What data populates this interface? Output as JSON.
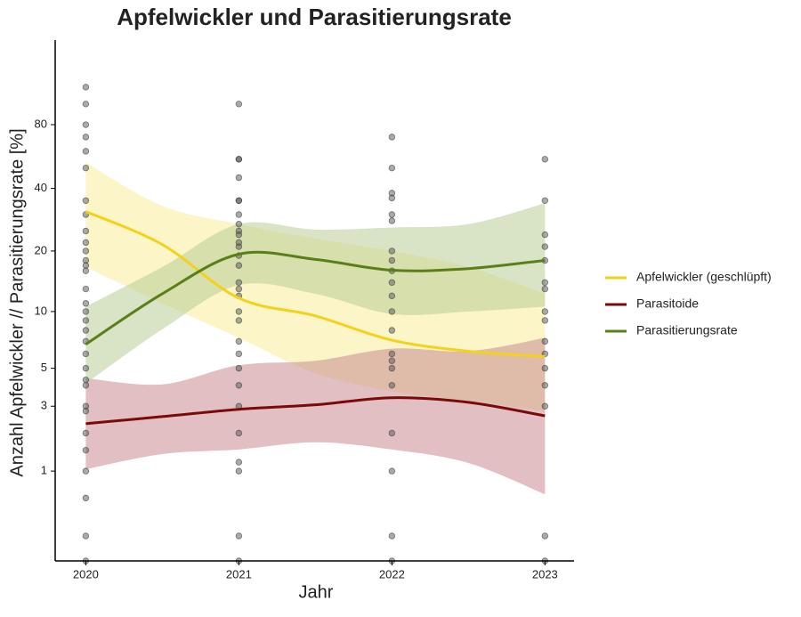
{
  "chart_data": {
    "type": "line",
    "title": "Apfelwickler und Parasitierungsrate",
    "x_label": "Jahr",
    "y_label": "Anzahl Apfelwickler // Parasitierungsrate [%]",
    "y_scale": "log1p",
    "xlim": [
      2019.8,
      2023.19
    ],
    "xticks": [
      2020,
      2021,
      2022,
      2023
    ],
    "ylim": [
      -0.234,
      199
    ],
    "yticks": [
      1,
      3,
      5,
      10,
      20,
      40,
      80
    ],
    "legend": "right",
    "points": {
      "color": "#555555",
      "x": [
        2020,
        2020,
        2020,
        2020,
        2020,
        2020,
        2020,
        2020,
        2020,
        2020,
        2020,
        2020,
        2020,
        2020,
        2020,
        2020,
        2020,
        2020,
        2020,
        2020,
        2020,
        2020,
        2020,
        2020,
        2020,
        2020,
        2020,
        2020,
        2020,
        2020,
        2020,
        2020,
        2021,
        2021,
        2021,
        2021,
        2021,
        2021,
        2021,
        2021,
        2021,
        2021,
        2021,
        2021,
        2021,
        2021,
        2021,
        2021,
        2021,
        2021,
        2021,
        2021,
        2021,
        2021,
        2021,
        2021,
        2021,
        2021,
        2021,
        2021,
        2021,
        2022,
        2022,
        2022,
        2022,
        2022,
        2022,
        2022,
        2022,
        2022,
        2022,
        2022,
        2022,
        2022,
        2022,
        2022,
        2022,
        2022,
        2022,
        2022,
        2022,
        2022,
        2023,
        2023,
        2023,
        2023,
        2023,
        2023,
        2023,
        2023,
        2023,
        2023,
        2023,
        2023,
        2023,
        2023,
        2023,
        2023
      ],
      "y": [
        120,
        100,
        80,
        70,
        60,
        50,
        35,
        30,
        25,
        22,
        20,
        18,
        17,
        16,
        13,
        11,
        10,
        9,
        8,
        7,
        6,
        5,
        4.3,
        4,
        3,
        2.8,
        2,
        1.5,
        1,
        0.5,
        0,
        -0.234,
        100,
        55,
        55,
        45,
        35,
        35,
        30,
        27,
        25,
        24,
        22,
        21,
        19,
        17,
        14,
        13,
        12,
        10,
        9,
        7,
        6,
        5,
        4,
        3,
        2,
        1.2,
        1,
        0,
        -0.234,
        70,
        50,
        38,
        36,
        30,
        28,
        20,
        18,
        16,
        14,
        12,
        10,
        8,
        6,
        5.5,
        5,
        4,
        2,
        1,
        0,
        -0.234,
        55,
        35,
        24,
        21,
        18,
        14,
        13,
        10,
        9,
        7,
        6,
        5,
        4,
        3,
        0,
        -0.234
      ]
    },
    "series": [
      {
        "name": "Apfelwickler (geschlüpft)",
        "color": "#f2d21b",
        "band_color": "#f7ec9a",
        "x": [
          2020,
          2020.5,
          2021,
          2021.5,
          2022,
          2022.5,
          2023
        ],
        "values": [
          31,
          21.5,
          11.7,
          9.5,
          7.1,
          6.2,
          5.8
        ],
        "upper": [
          53,
          33,
          27,
          23,
          20,
          16.7,
          12.3
        ],
        "lower": [
          16.7,
          11,
          7.3,
          4.7,
          3.7,
          3.25,
          2.8
        ]
      },
      {
        "name": "Parasitoide",
        "color": "#7a0a0a",
        "band_color": "#c98a90",
        "x": [
          2020,
          2020.5,
          2021,
          2021.5,
          2022,
          2022.5,
          2023
        ],
        "values": [
          2.32,
          2.58,
          2.87,
          3.06,
          3.38,
          3.17,
          2.61
        ],
        "upper": [
          4.4,
          4.05,
          5.2,
          5.5,
          6.4,
          6.2,
          7.3
        ],
        "lower": [
          1.04,
          1.4,
          1.52,
          1.72,
          1.52,
          1.18,
          0.56
        ]
      },
      {
        "name": "Parasitierungsrate",
        "color": "#5a7f1a",
        "band_color": "#b9cc97",
        "x": [
          2020,
          2020.5,
          2021,
          2021.5,
          2022,
          2022.5,
          2023
        ],
        "values": [
          6.75,
          12.3,
          19.3,
          18.2,
          16.1,
          16.4,
          18
        ],
        "upper": [
          10.6,
          16.7,
          27,
          25.4,
          26,
          27,
          34
        ],
        "lower": [
          4.1,
          8.1,
          13.6,
          12.3,
          9.7,
          10,
          10.6
        ]
      }
    ]
  }
}
